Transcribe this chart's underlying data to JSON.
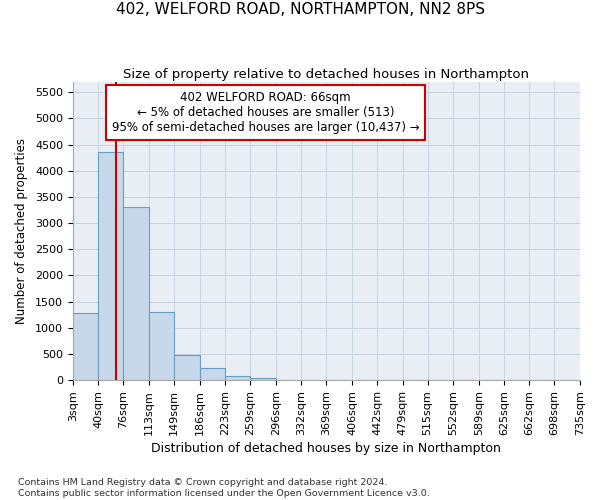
{
  "title": "402, WELFORD ROAD, NORTHAMPTON, NN2 8PS",
  "subtitle": "Size of property relative to detached houses in Northampton",
  "xlabel": "Distribution of detached houses by size in Northampton",
  "ylabel": "Number of detached properties",
  "bar_heights": [
    1280,
    4350,
    3300,
    1300,
    480,
    240,
    80,
    50,
    0,
    0,
    0,
    0,
    0,
    0,
    0,
    0,
    0,
    0,
    0,
    0
  ],
  "bin_edges": [
    3,
    40,
    76,
    113,
    149,
    186,
    223,
    259,
    296,
    332,
    369,
    406,
    442,
    479,
    515,
    552,
    589,
    625,
    662,
    698,
    735
  ],
  "bar_color": "#c8d8eb",
  "bar_edge_color": "#6a9ec0",
  "property_line_x": 66,
  "property_line_color": "#cc0000",
  "annotation_line1": "402 WELFORD ROAD: 66sqm",
  "annotation_line2": "← 5% of detached houses are smaller (513)",
  "annotation_line3": "95% of semi-detached houses are larger (10,437) →",
  "annotation_box_color": "#cc0000",
  "ylim": [
    0,
    5700
  ],
  "yticks": [
    0,
    500,
    1000,
    1500,
    2000,
    2500,
    3000,
    3500,
    4000,
    4500,
    5000,
    5500
  ],
  "grid_color": "#c8d4e0",
  "bg_color": "#e8eef4",
  "footer_text": "Contains HM Land Registry data © Crown copyright and database right 2024.\nContains public sector information licensed under the Open Government Licence v3.0.",
  "title_fontsize": 11,
  "subtitle_fontsize": 9.5,
  "xlabel_fontsize": 9,
  "ylabel_fontsize": 8.5,
  "tick_fontsize": 8,
  "annotation_fontsize": 8.5,
  "footer_fontsize": 6.8
}
